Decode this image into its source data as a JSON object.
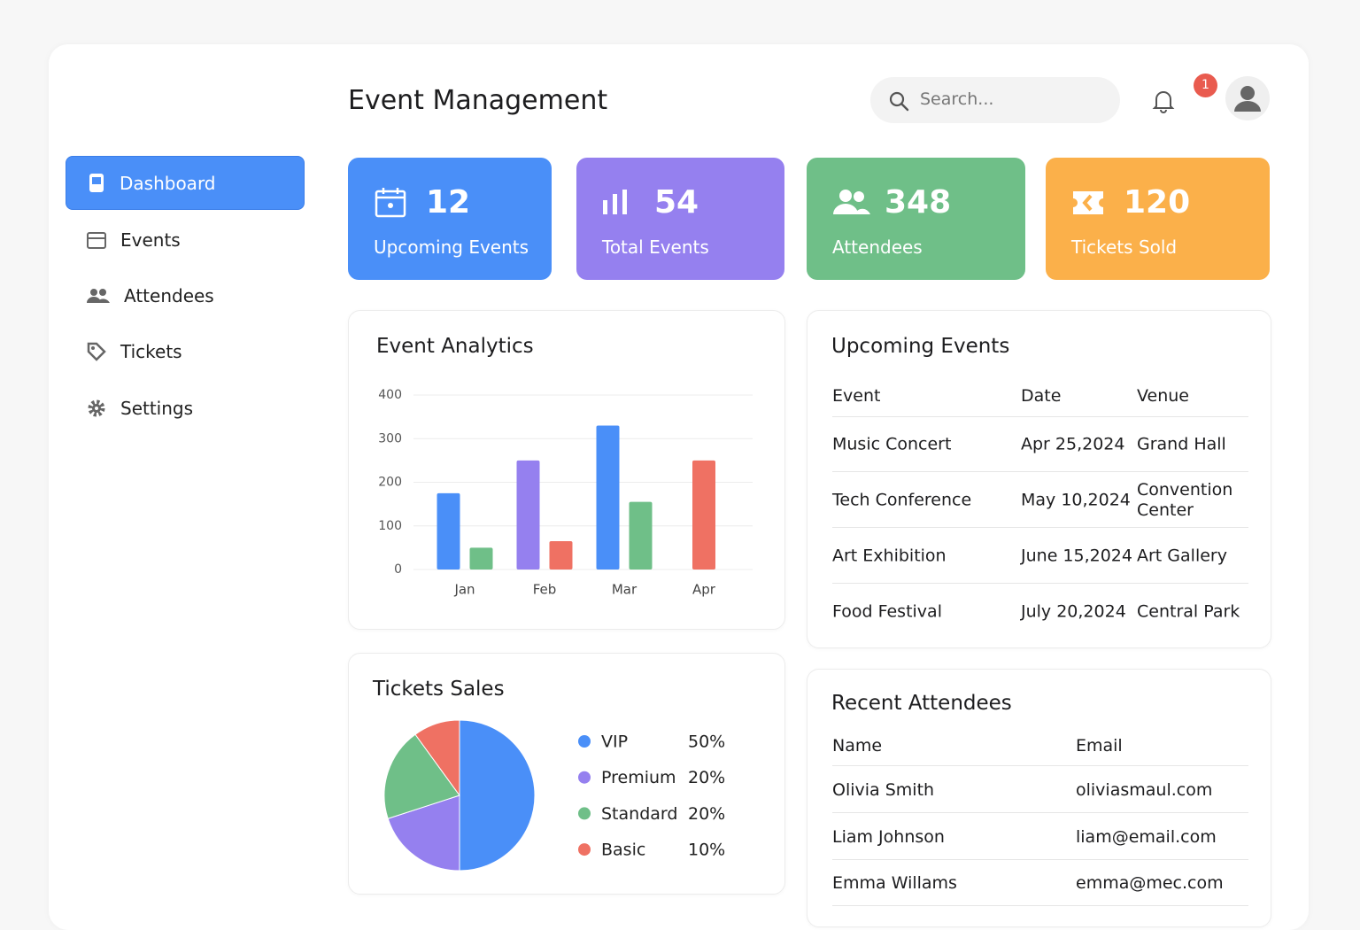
{
  "header": {
    "title": "Event Management",
    "search_placeholder": "Search...",
    "notification_count": 1
  },
  "sidebar": {
    "items": [
      "Dashboard",
      "Events",
      "Attendees",
      "Tickets",
      "Settings"
    ]
  },
  "stats": [
    {
      "value": 12,
      "label": "Upcoming Events",
      "color": "#4a8ff8"
    },
    {
      "value": 54,
      "label": "Total Events",
      "color": "#9580ef"
    },
    {
      "value": 348,
      "label": "Attendees",
      "color": "#6fbf88"
    },
    {
      "value": 120,
      "label": "Tickets Sold",
      "color": "#fbb04a"
    }
  ],
  "chart_data": [
    {
      "type": "bar",
      "title": "Event Analytics",
      "categories": [
        "Jan",
        "Feb",
        "Mar",
        "Apr"
      ],
      "series": [
        {
          "color": "#4a8ff8",
          "values": [
            175,
            null,
            330,
            null
          ]
        },
        {
          "color": "#9580ef",
          "values": [
            null,
            250,
            null,
            null
          ]
        },
        {
          "color": "#6fbf88",
          "values": [
            50,
            null,
            155,
            null
          ]
        },
        {
          "color": "#ef7163",
          "values": [
            null,
            65,
            null,
            250
          ]
        }
      ],
      "ylim": [
        0,
        400
      ],
      "yticks": [
        0,
        100,
        200,
        300,
        400
      ],
      "grid": true
    },
    {
      "type": "pie",
      "title": "Tickets Sales",
      "categories": [
        "VIP",
        "Premium",
        "Standard",
        "Basic"
      ],
      "values": [
        50,
        20,
        20,
        10
      ],
      "value_labels": [
        "50%",
        "20%",
        "20%",
        "10%"
      ],
      "colors": [
        "#4a8ff8",
        "#9580ef",
        "#6fbf88",
        "#ef7163"
      ]
    }
  ],
  "upcoming_events": {
    "title": "Upcoming Events",
    "columns": [
      "Event",
      "Date",
      "Venue"
    ],
    "rows": [
      [
        "Music Concert",
        "Apr 25,2024",
        "Grand Hall"
      ],
      [
        "Tech Conference",
        "May 10,2024",
        "Convention Center"
      ],
      [
        "Art Exhibition",
        "June 15,2024",
        "Art Gallery"
      ],
      [
        "Food Festival",
        "July 20,2024",
        "Central Park"
      ]
    ]
  },
  "recent_attendees": {
    "title": "Recent Attendees",
    "columns": [
      "Name",
      "Email"
    ],
    "rows": [
      [
        "Olivia Smith",
        "oliviasmaul.com"
      ],
      [
        "Liam Johnson",
        "liam@email.com"
      ],
      [
        "Emma Willams",
        "emma@mec.com"
      ]
    ]
  }
}
